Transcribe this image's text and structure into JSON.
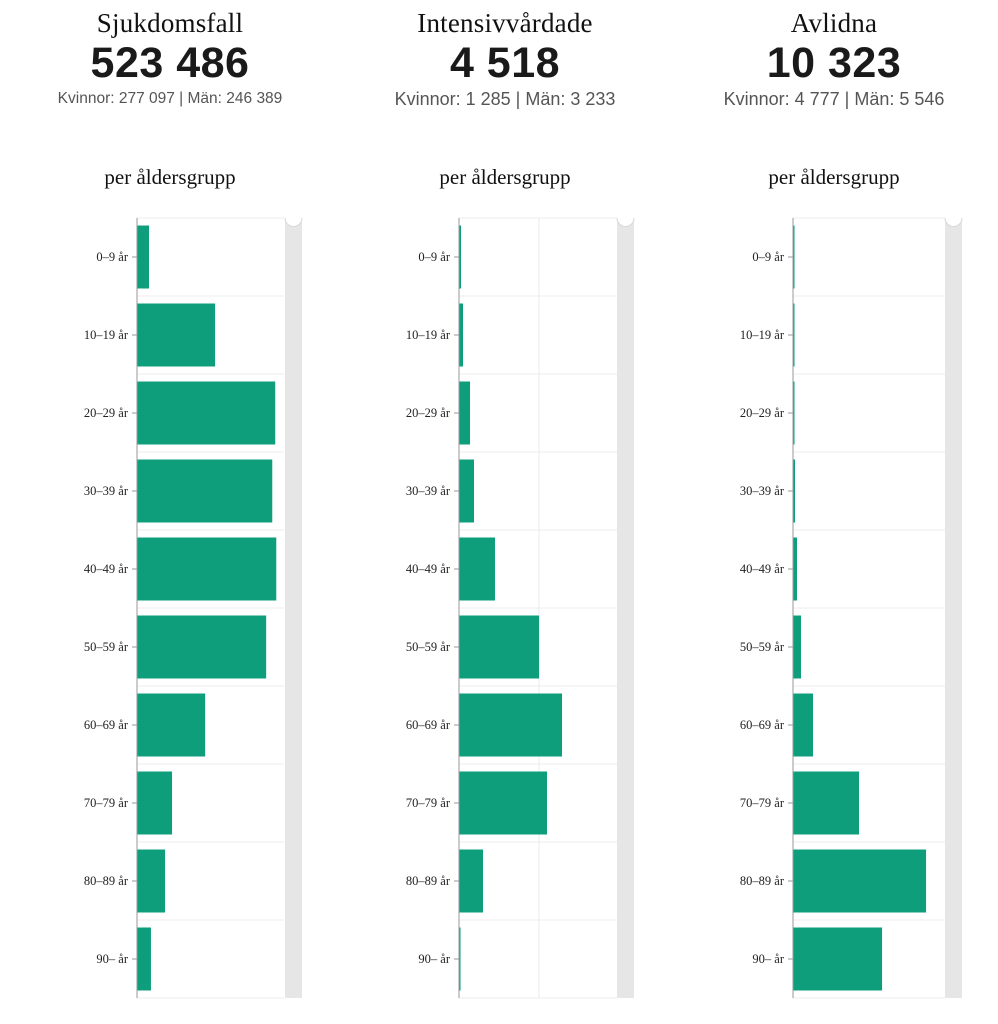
{
  "panels": [
    {
      "title": "Sjukdomsfall",
      "total": "523 486",
      "split": "Kvinnor: 277 097 | Män: 246 389",
      "subtitle": "per åldersgrupp"
    },
    {
      "title": "Intensivvårdade",
      "total": "4 518",
      "split": "Kvinnor: 1 285 | Män: 3 233",
      "subtitle": "per åldersgrupp"
    },
    {
      "title": "Avlidna",
      "total": "10 323",
      "split": "Kvinnor: 4 777 | Män: 5 546",
      "subtitle": "per åldersgrupp"
    }
  ],
  "colors": {
    "bar": "#0e9e7c",
    "grid": "#ececec",
    "scrollbar": "#e6e6e6",
    "axis": "#9a9a9a"
  },
  "chart_data": [
    {
      "type": "bar",
      "orientation": "horizontal",
      "title": "Sjukdomsfall",
      "subtitle": "per åldersgrupp",
      "xlabel": "",
      "ylabel": "",
      "categories": [
        "0–9 år",
        "10–19 år",
        "20–29 år",
        "30–39 år",
        "40–49 år",
        "50–59 år",
        "60–69 år",
        "70–79 år",
        "80–89 år",
        "90– år"
      ],
      "values": [
        8100,
        52600,
        93100,
        91100,
        93800,
        87000,
        45900,
        23600,
        18900,
        9400
      ],
      "xlim": [
        0,
        99000
      ],
      "grid": true,
      "values_estimated": true
    },
    {
      "type": "bar",
      "orientation": "horizontal",
      "title": "Intensivvårdade",
      "subtitle": "per åldersgrupp",
      "xlabel": "",
      "ylabel": "",
      "categories": [
        "0–9 år",
        "10–19 år",
        "20–29 år",
        "30–39 år",
        "40–49 år",
        "50–59 år",
        "60–69 år",
        "70–79 år",
        "80–89 år",
        "90– år"
      ],
      "values": [
        25,
        50,
        137,
        186,
        447,
        993,
        1278,
        1092,
        298,
        12
      ],
      "xlim": [
        0,
        1960
      ],
      "grid": true,
      "values_estimated": true
    },
    {
      "type": "bar",
      "orientation": "horizontal",
      "title": "Avlidna",
      "subtitle": "per åldersgrupp",
      "xlabel": "",
      "ylabel": "",
      "categories": [
        "0–9 år",
        "10–19 år",
        "20–29 år",
        "30–39 år",
        "40–49 år",
        "50–59 år",
        "60–69 år",
        "70–79 år",
        "80–89 år",
        "90– år"
      ],
      "values": [
        16,
        16,
        32,
        64,
        127,
        255,
        637,
        2103,
        4237,
        2836
      ],
      "xlim": [
        0,
        4840
      ],
      "grid": true,
      "values_estimated": true
    }
  ]
}
